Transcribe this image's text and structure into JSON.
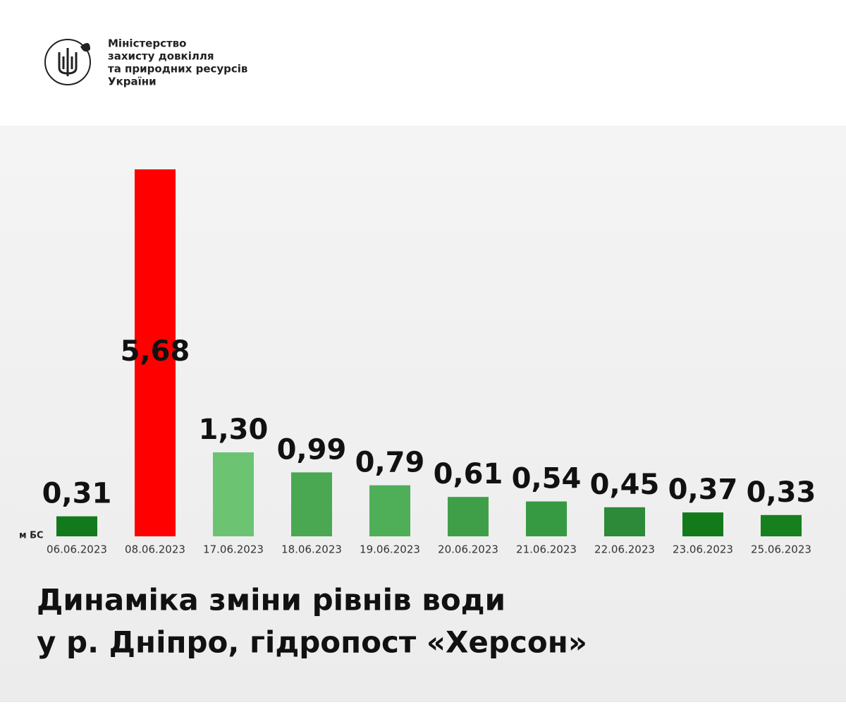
{
  "header": {
    "ministry": [
      "Міністерство",
      "захисту довкілля",
      "та природних ресурсів",
      "України"
    ]
  },
  "chart_data": {
    "type": "bar",
    "title": [
      "Динаміка зміни рівнів води",
      "у р. Дніпро, гідропост «Херсон»"
    ],
    "unit": "м БС",
    "categories": [
      "06.06.2023",
      "08.06.2023",
      "17.06.2023",
      "18.06.2023",
      "19.06.2023",
      "20.06.2023",
      "21.06.2023",
      "22.06.2023",
      "23.06.2023",
      "25.06.2023"
    ],
    "values": [
      0.31,
      5.68,
      1.3,
      0.99,
      0.79,
      0.61,
      0.54,
      0.45,
      0.37,
      0.33
    ],
    "value_labels": [
      "0,31",
      "5,68",
      "1,30",
      "0,99",
      "0,79",
      "0,61",
      "0,54",
      "0,45",
      "0,37",
      "0,33"
    ],
    "colors": [
      "#127a1c",
      "#ff0000",
      "#6cc472",
      "#4aa852",
      "#4fae58",
      "#3f9f49",
      "#359a42",
      "#2c8a38",
      "#137a1a",
      "#16801e"
    ]
  }
}
